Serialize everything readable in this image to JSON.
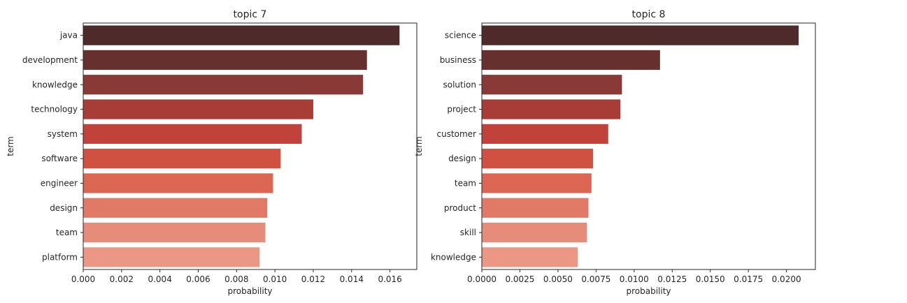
{
  "chart_data": [
    {
      "type": "bar",
      "orientation": "horizontal",
      "title": "topic 7",
      "xlabel": "probability",
      "ylabel": "term",
      "categories": [
        "java",
        "development",
        "knowledge",
        "technology",
        "system",
        "software",
        "engineer",
        "design",
        "team",
        "platform"
      ],
      "values": [
        0.0165,
        0.0148,
        0.0146,
        0.012,
        0.0114,
        0.0103,
        0.0099,
        0.0096,
        0.0095,
        0.0092
      ],
      "xlim": [
        0,
        0.0174
      ],
      "xticks": [
        0.0,
        0.002,
        0.004,
        0.006,
        0.008,
        0.01,
        0.012,
        0.014,
        0.016
      ],
      "xtick_labels": [
        "0.000",
        "0.002",
        "0.004",
        "0.006",
        "0.008",
        "0.010",
        "0.012",
        "0.014",
        "0.016"
      ],
      "grid": false
    },
    {
      "type": "bar",
      "orientation": "horizontal",
      "title": "topic 8",
      "xlabel": "probability",
      "ylabel": "term",
      "categories": [
        "science",
        "business",
        "solution",
        "project",
        "customer",
        "design",
        "team",
        "product",
        "skill",
        "knowledge"
      ],
      "values": [
        0.0208,
        0.0117,
        0.0092,
        0.0091,
        0.0083,
        0.0073,
        0.0072,
        0.007,
        0.0069,
        0.0063
      ],
      "xlim": [
        0,
        0.0219
      ],
      "xticks": [
        0.0,
        0.0025,
        0.005,
        0.0075,
        0.01,
        0.0125,
        0.015,
        0.0175,
        0.02
      ],
      "xtick_labels": [
        "0.0000",
        "0.0025",
        "0.0050",
        "0.0075",
        "0.0100",
        "0.0125",
        "0.0150",
        "0.0175",
        "0.0200"
      ],
      "grid": false
    }
  ],
  "palette": [
    "#4f2a2b",
    "#66302f",
    "#8a3a36",
    "#a73d36",
    "#c0423b",
    "#d0513f",
    "#db6652",
    "#e07a66",
    "#e58c7a",
    "#ea9884"
  ]
}
